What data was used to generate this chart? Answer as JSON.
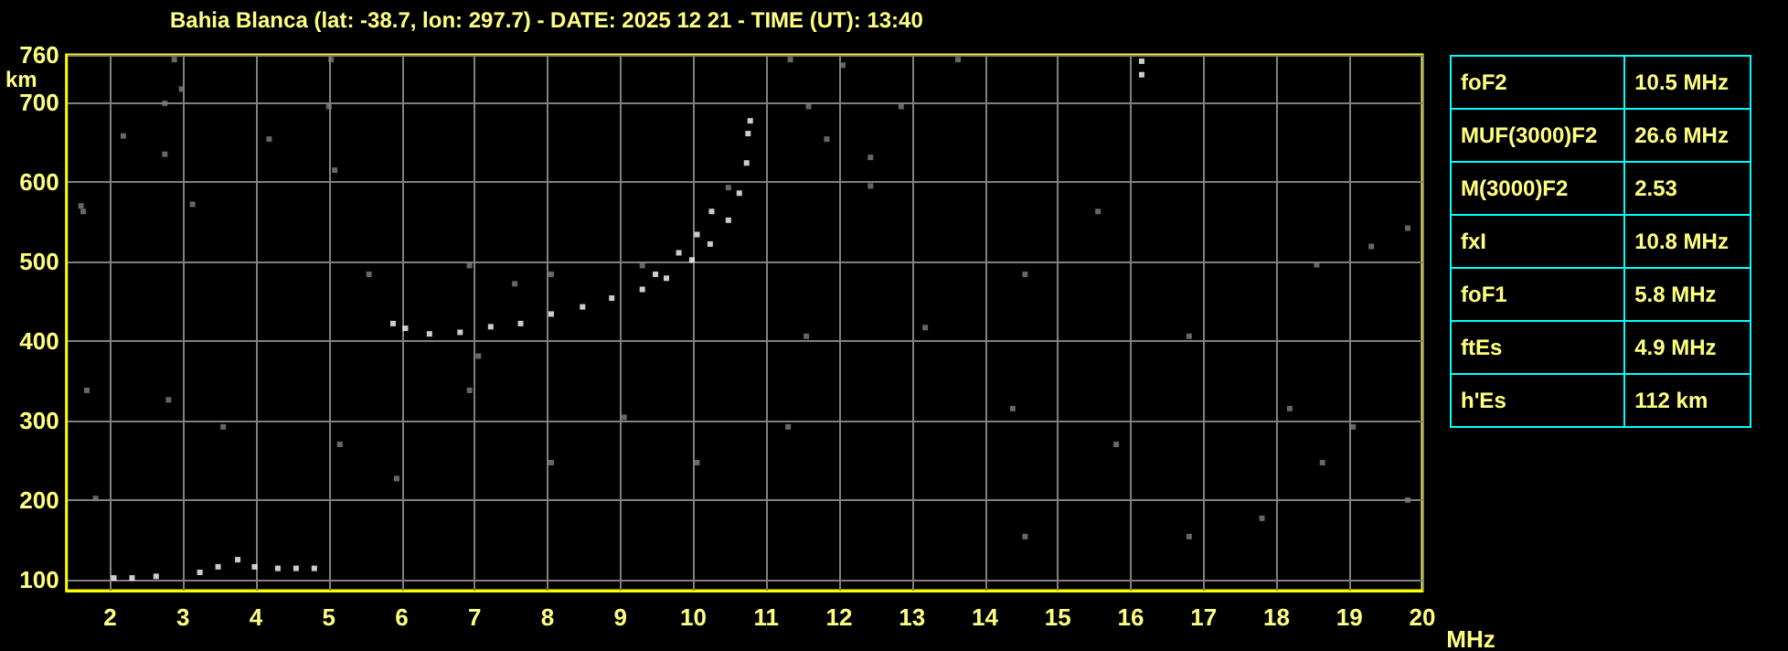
{
  "chart_data": [
    {
      "type": "scatter",
      "title": "Bahia Blanca (lat: -38.7, lon: 297.7) - DATE: 2025 12 21 - TIME (UT): 13:40",
      "xlabel": "MHz",
      "ylabel": "km",
      "xlim": [
        1.4,
        20
      ],
      "ylim": [
        86,
        760
      ],
      "xticks": [
        2,
        3,
        4,
        5,
        6,
        7,
        8,
        9,
        10,
        11,
        12,
        13,
        14,
        15,
        16,
        17,
        18,
        19,
        20
      ],
      "yticks": [
        100,
        200,
        300,
        400,
        500,
        600,
        700,
        760
      ],
      "grid": true,
      "marker": "square",
      "series": [
        {
          "color": "#ffffff",
          "x": [
            5.88,
            6.05,
            6.38,
            6.8,
            7.22,
            7.63,
            8.05,
            8.48,
            8.88,
            9.3,
            9.63,
            9.98,
            10.23,
            10.48,
            10.63,
            10.73,
            10.75,
            10.78,
            9.48,
            9.8,
            10.05,
            10.25,
            2.05,
            2.3,
            2.63,
            3.23,
            3.48,
            3.75,
            3.98,
            4.3,
            4.55,
            4.8,
            16.15,
            16.15
          ],
          "values": [
            422,
            416,
            409,
            411,
            418,
            422,
            434,
            443,
            454,
            465,
            479,
            502,
            522,
            552,
            586,
            624,
            661,
            677,
            484,
            511,
            534,
            563,
            102,
            102,
            104,
            109,
            116,
            125,
            116,
            114,
            114,
            114,
            735,
            752
          ]
        },
        {
          "color": "#808080",
          "x": [
            10.48,
            1.63,
            2.88,
            2.98,
            2.75,
            2.18,
            2.75,
            4.18,
            5.03,
            5.0,
            5.08,
            3.13,
            1.6,
            11.33,
            12.05,
            11.58,
            11.83,
            12.43,
            12.85,
            12.43,
            13.63,
            14.55,
            15.55,
            18.55,
            19.3,
            19.8,
            19.05,
            18.63,
            18.18,
            16.8,
            15.8,
            14.38,
            13.18,
            11.55,
            11.3,
            10.05,
            9.05,
            8.05,
            6.93,
            5.93,
            5.15,
            3.55,
            2.8,
            1.68,
            1.8,
            19.8,
            17.8,
            16.8,
            14.55,
            7.05,
            6.93,
            9.3,
            8.05,
            7.55,
            5.55
          ],
          "values": [
            593,
            563,
            754,
            717,
            699,
            658,
            635,
            654,
            754,
            695,
            615,
            572,
            570,
            754,
            747,
            695,
            654,
            631,
            695,
            595,
            754,
            484,
            563,
            496,
            519,
            542,
            292,
            247,
            315,
            406,
            270,
            315,
            417,
            406,
            292,
            247,
            304,
            247,
            338,
            227,
            270,
            292,
            326,
            338,
            202,
            200,
            177,
            154,
            154,
            381,
            495,
            495,
            484,
            472,
            484
          ]
        }
      ]
    },
    {
      "type": "other",
      "categories": [
        "foF2",
        "MUF(3000)F2",
        "M(3000)F2",
        "fxI",
        "foF1",
        "ftEs",
        "h'Es"
      ],
      "value_labels": [
        "10.5 MHz",
        "26.6 MHz",
        "2.53",
        "10.8 MHz",
        "5.8 MHz",
        "4.9 MHz",
        "112 km"
      ]
    }
  ]
}
